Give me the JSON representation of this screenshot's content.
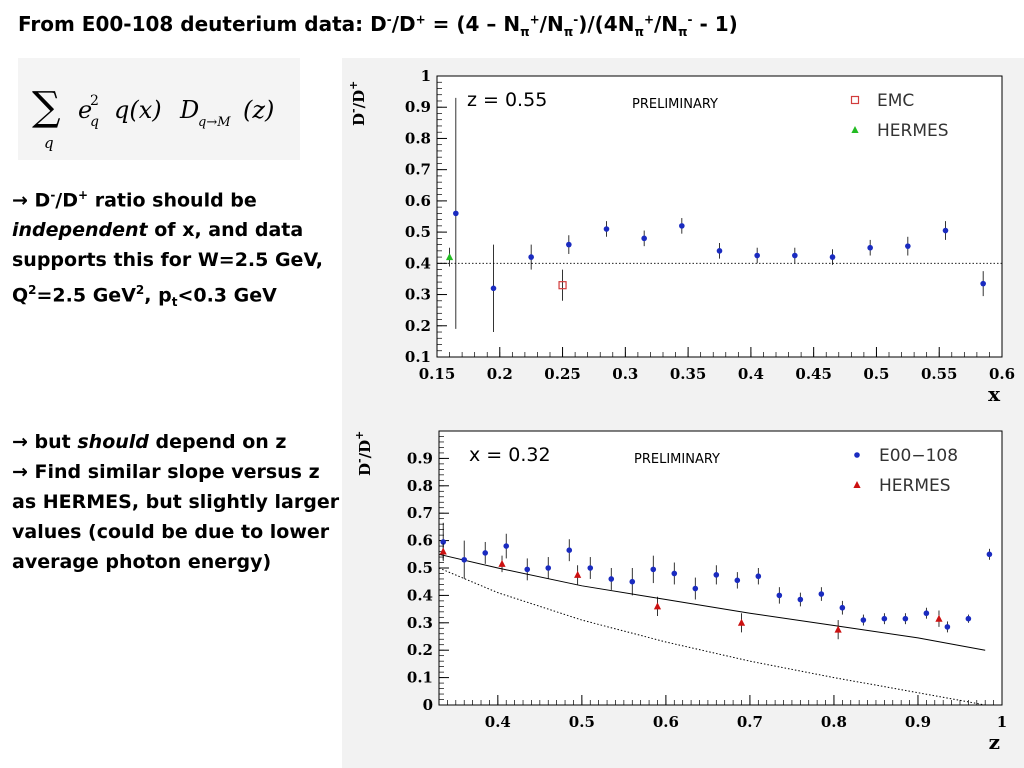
{
  "title": {
    "p1": "From E00-108 deuterium data: D",
    "s1": "-",
    "p2": "/D",
    "s2": "+",
    "p3": " = (4 – N",
    "sb1": "π",
    "s3": "+",
    "p4": "/N",
    "sb2": "π",
    "s4": "-",
    "p5": ")/(4N",
    "sb3": "π",
    "s5": "+",
    "p6": "/N",
    "sb4": "π",
    "s6": "-",
    "p7": " - 1)"
  },
  "formula": {
    "sum_symbol": "∑",
    "sum_index": "q",
    "e": "e",
    "e_sup": "2",
    "e_sub": "q",
    "q_of_x": "q(x)",
    "D": "D",
    "D_sub": "q→M",
    "of_z": "(z)"
  },
  "bullet1": {
    "arrow": "→",
    "t1": " D",
    "s1": "-",
    "t2": "/D",
    "s2": "+",
    "t3": " ratio should be",
    "italic": "independent",
    "t4": " of x, and data supports this for W=2.5 GeV, Q",
    "s3": "2",
    "t5": "=2.5 GeV",
    "s4": "2",
    "t6": ", p",
    "sb1": "t",
    "t7": "<0.3 GeV"
  },
  "bullet2": {
    "arrow1": "→",
    "t1": " but ",
    "italic": "should",
    "t2": " depend on z",
    "arrow2": "→",
    "t3": " Find similar slope versus z as HERMES, but slightly larger values (could be due to lower average photon energy)"
  },
  "chart_data": [
    {
      "type": "scatter",
      "annotation": "z = 0.55",
      "preliminary": "PRELIMINARY",
      "ylabel": "D",
      "ylabel_minus": "-",
      "ylabel_mid": "/D",
      "ylabel_plus": "+",
      "xlabel": "x",
      "xlim": [
        0.15,
        0.6
      ],
      "ylim": [
        0.1,
        1.0
      ],
      "xticks": [
        "0.15",
        "0.2",
        "0.25",
        "0.3",
        "0.35",
        "0.4",
        "0.45",
        "0.5",
        "0.55",
        "0.6"
      ],
      "yticks": [
        "0.1",
        "0.2",
        "0.3",
        "0.4",
        "0.5",
        "0.6",
        "0.7",
        "0.8",
        "0.9",
        "1"
      ],
      "hline": 0.4,
      "legend_position": "top-right",
      "legend": [
        {
          "name": "EMC",
          "marker": "open-square",
          "color": "#d23c3c"
        },
        {
          "name": "HERMES",
          "marker": "triangle",
          "color": "#22bb22"
        }
      ],
      "series": [
        {
          "name": "",
          "marker": "dot",
          "color": "#1a2bc0",
          "points": [
            {
              "x": 0.165,
              "y": 0.56,
              "err": 0.37
            },
            {
              "x": 0.195,
              "y": 0.32,
              "err": 0.14
            },
            {
              "x": 0.225,
              "y": 0.42,
              "err": 0.04
            },
            {
              "x": 0.255,
              "y": 0.46,
              "err": 0.03
            },
            {
              "x": 0.285,
              "y": 0.51,
              "err": 0.025
            },
            {
              "x": 0.315,
              "y": 0.48,
              "err": 0.025
            },
            {
              "x": 0.345,
              "y": 0.52,
              "err": 0.025
            },
            {
              "x": 0.375,
              "y": 0.44,
              "err": 0.025
            },
            {
              "x": 0.405,
              "y": 0.425,
              "err": 0.025
            },
            {
              "x": 0.435,
              "y": 0.425,
              "err": 0.025
            },
            {
              "x": 0.465,
              "y": 0.42,
              "err": 0.025
            },
            {
              "x": 0.495,
              "y": 0.45,
              "err": 0.025
            },
            {
              "x": 0.525,
              "y": 0.455,
              "err": 0.03
            },
            {
              "x": 0.555,
              "y": 0.505,
              "err": 0.03
            },
            {
              "x": 0.585,
              "y": 0.335,
              "err": 0.04
            }
          ]
        },
        {
          "name": "EMC",
          "marker": "open-square",
          "color": "#d23c3c",
          "points": [
            {
              "x": 0.25,
              "y": 0.33,
              "err": 0.05
            }
          ]
        },
        {
          "name": "HERMES",
          "marker": "triangle",
          "color": "#22bb22",
          "points": [
            {
              "x": 0.16,
              "y": 0.42,
              "err": 0.03
            }
          ]
        }
      ]
    },
    {
      "type": "scatter",
      "annotation": "x = 0.32",
      "preliminary": "PRELIMINARY",
      "ylabel": "D",
      "ylabel_minus": "-",
      "ylabel_mid": "/D",
      "ylabel_plus": "+",
      "xlabel": "z",
      "xlim": [
        0.33,
        1.0
      ],
      "ylim": [
        0,
        1.0
      ],
      "xticks": [
        "0.4",
        "0.5",
        "0.6",
        "0.7",
        "0.8",
        "0.9",
        "1"
      ],
      "xtick_values": [
        0.4,
        0.5,
        0.6,
        0.7,
        0.8,
        0.9,
        1.0
      ],
      "yticks": [
        "0",
        "0.1",
        "0.2",
        "0.3",
        "0.4",
        "0.5",
        "0.6",
        "0.7",
        "0.8",
        "0.9"
      ],
      "legend_position": "top-right",
      "legend": [
        {
          "name": "E00−108",
          "marker": "dot",
          "color": "#1a2bc0"
        },
        {
          "name": "HERMES",
          "marker": "triangle",
          "color": "#cc1111"
        }
      ],
      "series": [
        {
          "name": "E00−108",
          "marker": "dot",
          "color": "#1a2bc0",
          "points": [
            {
              "x": 0.335,
              "y": 0.595,
              "err": 0.07
            },
            {
              "x": 0.36,
              "y": 0.53,
              "err": 0.07
            },
            {
              "x": 0.385,
              "y": 0.555,
              "err": 0.04
            },
            {
              "x": 0.41,
              "y": 0.58,
              "err": 0.045
            },
            {
              "x": 0.435,
              "y": 0.495,
              "err": 0.04
            },
            {
              "x": 0.46,
              "y": 0.5,
              "err": 0.04
            },
            {
              "x": 0.485,
              "y": 0.565,
              "err": 0.04
            },
            {
              "x": 0.51,
              "y": 0.5,
              "err": 0.04
            },
            {
              "x": 0.535,
              "y": 0.46,
              "err": 0.04
            },
            {
              "x": 0.56,
              "y": 0.45,
              "err": 0.05
            },
            {
              "x": 0.585,
              "y": 0.495,
              "err": 0.05
            },
            {
              "x": 0.61,
              "y": 0.48,
              "err": 0.04
            },
            {
              "x": 0.635,
              "y": 0.425,
              "err": 0.04
            },
            {
              "x": 0.66,
              "y": 0.475,
              "err": 0.035
            },
            {
              "x": 0.685,
              "y": 0.455,
              "err": 0.03
            },
            {
              "x": 0.71,
              "y": 0.47,
              "err": 0.03
            },
            {
              "x": 0.735,
              "y": 0.4,
              "err": 0.03
            },
            {
              "x": 0.76,
              "y": 0.385,
              "err": 0.025
            },
            {
              "x": 0.785,
              "y": 0.405,
              "err": 0.025
            },
            {
              "x": 0.81,
              "y": 0.355,
              "err": 0.025
            },
            {
              "x": 0.835,
              "y": 0.31,
              "err": 0.02
            },
            {
              "x": 0.86,
              "y": 0.315,
              "err": 0.02
            },
            {
              "x": 0.885,
              "y": 0.315,
              "err": 0.02
            },
            {
              "x": 0.91,
              "y": 0.335,
              "err": 0.02
            },
            {
              "x": 0.935,
              "y": 0.285,
              "err": 0.02
            },
            {
              "x": 0.96,
              "y": 0.315,
              "err": 0.015
            },
            {
              "x": 0.985,
              "y": 0.55,
              "err": 0.02
            }
          ]
        },
        {
          "name": "HERMES",
          "marker": "triangle",
          "color": "#cc1111",
          "points": [
            {
              "x": 0.335,
              "y": 0.56,
              "err": 0.03
            },
            {
              "x": 0.405,
              "y": 0.515,
              "err": 0.03
            },
            {
              "x": 0.495,
              "y": 0.475,
              "err": 0.035
            },
            {
              "x": 0.59,
              "y": 0.36,
              "err": 0.035
            },
            {
              "x": 0.69,
              "y": 0.3,
              "err": 0.035
            },
            {
              "x": 0.805,
              "y": 0.275,
              "err": 0.035
            },
            {
              "x": 0.925,
              "y": 0.315,
              "err": 0.03
            }
          ]
        }
      ],
      "curves": [
        {
          "style": "solid",
          "x": [
            0.33,
            0.4,
            0.5,
            0.6,
            0.7,
            0.8,
            0.9,
            0.98
          ],
          "y": [
            0.55,
            0.5,
            0.435,
            0.385,
            0.335,
            0.29,
            0.245,
            0.2
          ]
        },
        {
          "style": "dotted",
          "x": [
            0.33,
            0.4,
            0.5,
            0.6,
            0.7,
            0.8,
            0.9,
            0.98
          ],
          "y": [
            0.5,
            0.41,
            0.31,
            0.23,
            0.16,
            0.1,
            0.045,
            0.0
          ]
        }
      ]
    }
  ]
}
